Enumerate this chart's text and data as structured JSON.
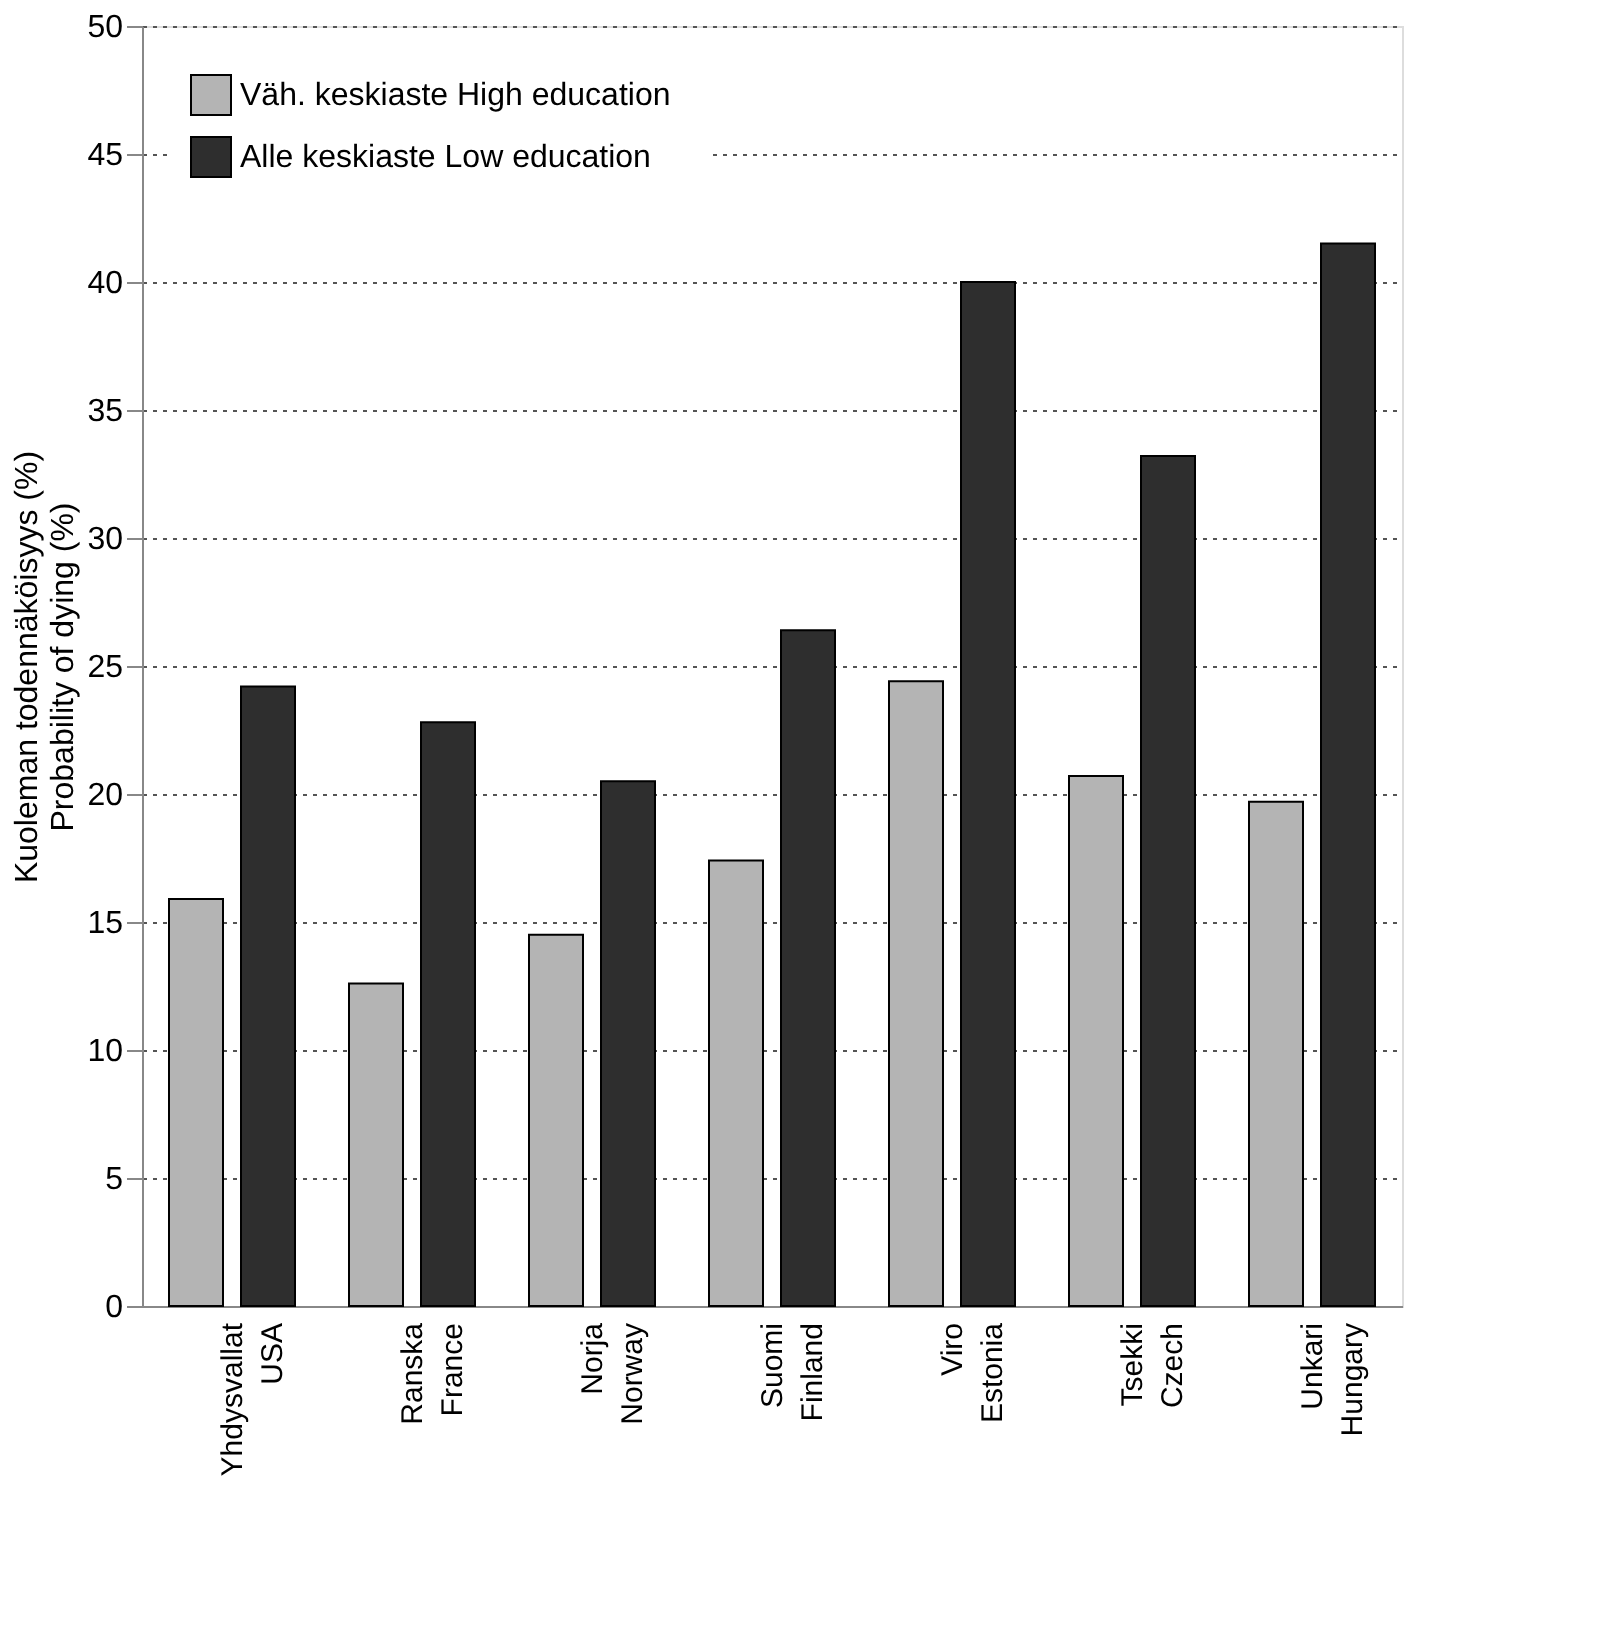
{
  "chart_data": {
    "type": "bar",
    "ylabel": "Kuoleman todennäköisyys (%)\nProbability of dying (%)",
    "categories": [
      "Yhdysvallat\nUSA",
      "Ranska\nFrance",
      "Norja\nNorway",
      "Suomi\nFinland",
      "Viro\nEstonia",
      "Tsekki\nCzech",
      "Unkari\nHungary"
    ],
    "series": [
      {
        "name": "Väh. keskiaste   High education",
        "color": "#b4b4b4",
        "values": [
          15.9,
          12.6,
          14.5,
          17.4,
          24.4,
          20.7,
          19.7
        ]
      },
      {
        "name": "Alle keskiaste   Low education",
        "color": "#2e2e2e",
        "values": [
          24.2,
          22.8,
          20.5,
          26.4,
          40.0,
          33.2,
          41.5
        ]
      }
    ],
    "ylim": [
      0,
      50
    ],
    "yticks": [
      0,
      5,
      10,
      15,
      20,
      25,
      30,
      35,
      40,
      45,
      50
    ],
    "grid": "y",
    "legend": "top left"
  }
}
